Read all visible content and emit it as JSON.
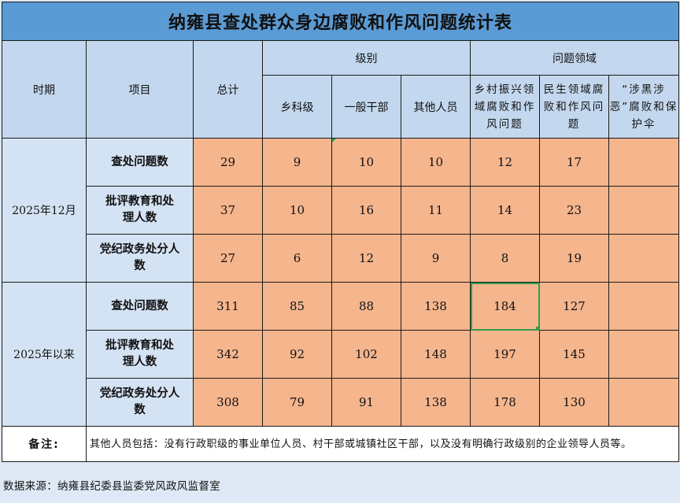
{
  "title": "纳雍县查处群众身边腐败和作风问题统计表",
  "headers": {
    "period": "时期",
    "item": "项目",
    "total": "总计",
    "level_group": "级别",
    "level_cols": [
      "乡科级",
      "一般干部",
      "其他人员"
    ],
    "area_group": "问题领域",
    "area_cols": [
      "乡村振兴领域腐败和作风问题",
      "民生领域腐败和作风问题",
      "“涉黑涉恶”腐败和保护伞"
    ]
  },
  "periods": [
    {
      "label": "2025年12月",
      "rows": [
        {
          "item": "查处问题数",
          "total": "29",
          "township": "9",
          "general": "10",
          "other": "10",
          "rural": "12",
          "livelihood": "17",
          "gang": ""
        },
        {
          "item": "批评教育和处理人数",
          "total": "37",
          "township": "10",
          "general": "16",
          "other": "11",
          "rural": "14",
          "livelihood": "23",
          "gang": ""
        },
        {
          "item": "党纪政务处分人数",
          "total": "27",
          "township": "6",
          "general": "12",
          "other": "9",
          "rural": "8",
          "livelihood": "19",
          "gang": ""
        }
      ]
    },
    {
      "label": "2025年以来",
      "rows": [
        {
          "item": "查处问题数",
          "total": "311",
          "township": "85",
          "general": "88",
          "other": "138",
          "rural": "184",
          "livelihood": "127",
          "gang": ""
        },
        {
          "item": "批评教育和处理人数",
          "total": "342",
          "township": "92",
          "general": "102",
          "other": "148",
          "rural": "197",
          "livelihood": "145",
          "gang": ""
        },
        {
          "item": "党纪政务处分人数",
          "total": "308",
          "township": "79",
          "general": "91",
          "other": "138",
          "rural": "178",
          "livelihood": "130",
          "gang": ""
        }
      ]
    }
  ],
  "note": {
    "label": "备注:",
    "text": "其他人员包括：没有行政职级的事业单位人员、村干部或城镇社区干部，以及没有明确行政级别的企业领导人员等。"
  },
  "source": "数据来源：纳雍县纪委县监委党风政风监督室",
  "colors": {
    "title_bg": "#5b9bd5",
    "header_bg": "#c3d8ee",
    "row_label_bg": "#d4e3f3",
    "value_bg": "#f5b58d",
    "selection": "#2f9d4e"
  }
}
